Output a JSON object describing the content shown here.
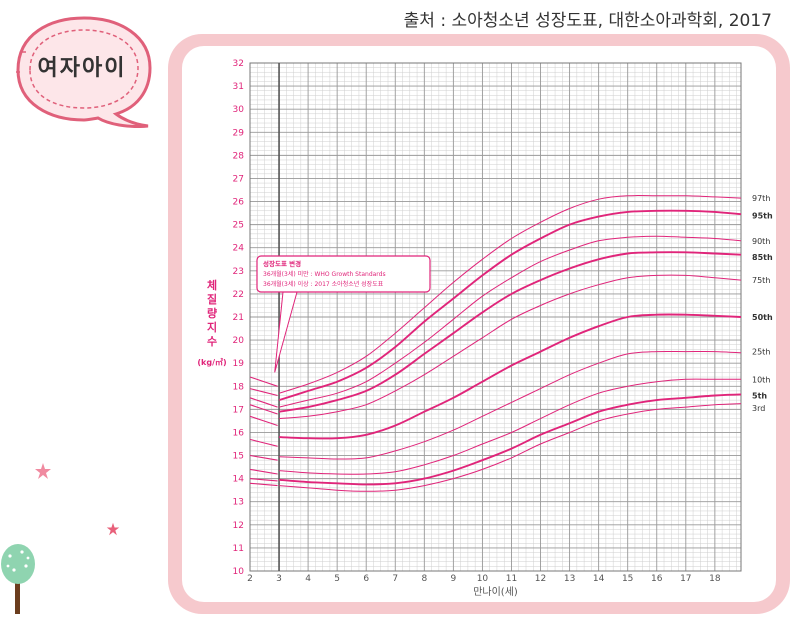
{
  "source": "출처 : 소아청소년 성장도표, 대한소아과학회, 2017",
  "badge": "여자아이",
  "chart_data": {
    "type": "line",
    "title": "",
    "xlabel": "만나이(세)",
    "ylabel": "체질량지수",
    "ylabel_unit": "(kg/㎡)",
    "xlim": [
      2,
      18.9
    ],
    "ylim": [
      10,
      32
    ],
    "x_ticks": [
      2,
      3,
      4,
      5,
      6,
      7,
      8,
      9,
      10,
      11,
      12,
      13,
      14,
      15,
      16,
      17,
      18
    ],
    "y_ticks": [
      10,
      11,
      12,
      13,
      14,
      15,
      16,
      17,
      18,
      19,
      20,
      21,
      22,
      23,
      24,
      25,
      26,
      27,
      28,
      29,
      30,
      31,
      32
    ],
    "grid": true,
    "annotation": {
      "title": "성장도표 변경",
      "line1": "36개월(3세) 미만 : WHO Growth Standards",
      "line2": "36개월(3세) 이상 : 2017 소아청소년 성장도표"
    },
    "who_series": [
      {
        "name": "97th",
        "x": [
          2,
          2.95
        ],
        "y": [
          18.4,
          18.0
        ]
      },
      {
        "name": "95th",
        "x": [
          2,
          2.95
        ],
        "y": [
          17.9,
          17.6
        ]
      },
      {
        "name": "90th",
        "x": [
          2,
          2.95
        ],
        "y": [
          17.5,
          17.1
        ]
      },
      {
        "name": "85th",
        "x": [
          2,
          2.95
        ],
        "y": [
          17.2,
          16.8
        ]
      },
      {
        "name": "75th",
        "x": [
          2,
          2.95
        ],
        "y": [
          16.7,
          16.3
        ]
      },
      {
        "name": "50th",
        "x": [
          2,
          2.95
        ],
        "y": [
          15.7,
          15.4
        ]
      },
      {
        "name": "25th",
        "x": [
          2,
          2.95
        ],
        "y": [
          15.0,
          14.8
        ]
      },
      {
        "name": "10th",
        "x": [
          2,
          2.95
        ],
        "y": [
          14.4,
          14.2
        ]
      },
      {
        "name": "5th",
        "x": [
          2,
          2.95
        ],
        "y": [
          14.0,
          13.9
        ]
      },
      {
        "name": "3rd",
        "x": [
          2,
          2.95
        ],
        "y": [
          13.8,
          13.7
        ]
      }
    ],
    "series": [
      {
        "name": "97th",
        "bold": false,
        "x": [
          3,
          4,
          5,
          6,
          7,
          8,
          9,
          10,
          11,
          12,
          13,
          14,
          15,
          16,
          17,
          18,
          18.9
        ],
        "y": [
          17.7,
          18.1,
          18.6,
          19.3,
          20.3,
          21.4,
          22.5,
          23.5,
          24.4,
          25.1,
          25.7,
          26.1,
          26.25,
          26.25,
          26.25,
          26.2,
          26.15
        ]
      },
      {
        "name": "95th",
        "bold": true,
        "x": [
          3,
          4,
          5,
          6,
          7,
          8,
          9,
          10,
          11,
          12,
          13,
          14,
          15,
          16,
          17,
          18,
          18.9
        ],
        "y": [
          17.4,
          17.8,
          18.2,
          18.8,
          19.7,
          20.8,
          21.8,
          22.8,
          23.7,
          24.4,
          25.0,
          25.35,
          25.55,
          25.6,
          25.6,
          25.55,
          25.45
        ]
      },
      {
        "name": "90th",
        "bold": false,
        "x": [
          3,
          4,
          5,
          6,
          7,
          8,
          9,
          10,
          11,
          12,
          13,
          14,
          15,
          16,
          17,
          18,
          18.9
        ],
        "y": [
          17.1,
          17.4,
          17.7,
          18.2,
          19.0,
          19.9,
          20.9,
          21.9,
          22.7,
          23.4,
          23.9,
          24.3,
          24.45,
          24.5,
          24.45,
          24.4,
          24.3
        ]
      },
      {
        "name": "85th",
        "bold": true,
        "x": [
          3,
          4,
          5,
          6,
          7,
          8,
          9,
          10,
          11,
          12,
          13,
          14,
          15,
          16,
          17,
          18,
          18.9
        ],
        "y": [
          16.9,
          17.1,
          17.4,
          17.8,
          18.5,
          19.4,
          20.3,
          21.2,
          22.0,
          22.6,
          23.1,
          23.5,
          23.75,
          23.8,
          23.8,
          23.75,
          23.7
        ]
      },
      {
        "name": "75th",
        "bold": false,
        "x": [
          3,
          4,
          5,
          6,
          7,
          8,
          9,
          10,
          11,
          12,
          13,
          14,
          15,
          16,
          17,
          18,
          18.9
        ],
        "y": [
          16.6,
          16.7,
          16.9,
          17.2,
          17.8,
          18.5,
          19.3,
          20.1,
          20.9,
          21.5,
          22.0,
          22.4,
          22.7,
          22.8,
          22.8,
          22.7,
          22.6
        ]
      },
      {
        "name": "50th",
        "bold": true,
        "x": [
          3,
          4,
          5,
          6,
          7,
          8,
          9,
          10,
          11,
          12,
          13,
          14,
          15,
          16,
          17,
          18,
          18.9
        ],
        "y": [
          15.8,
          15.75,
          15.75,
          15.9,
          16.3,
          16.9,
          17.5,
          18.2,
          18.9,
          19.5,
          20.1,
          20.6,
          21.0,
          21.1,
          21.1,
          21.05,
          21.0
        ]
      },
      {
        "name": "25th",
        "bold": false,
        "x": [
          3,
          4,
          5,
          6,
          7,
          8,
          9,
          10,
          11,
          12,
          13,
          14,
          15,
          16,
          17,
          18,
          18.9
        ],
        "y": [
          14.95,
          14.9,
          14.85,
          14.9,
          15.2,
          15.6,
          16.1,
          16.7,
          17.3,
          17.9,
          18.5,
          19.0,
          19.4,
          19.5,
          19.5,
          19.5,
          19.45
        ]
      },
      {
        "name": "10th",
        "bold": false,
        "x": [
          3,
          4,
          5,
          6,
          7,
          8,
          9,
          10,
          11,
          12,
          13,
          14,
          15,
          16,
          17,
          18,
          18.9
        ],
        "y": [
          14.35,
          14.25,
          14.2,
          14.2,
          14.3,
          14.6,
          15.0,
          15.5,
          16.0,
          16.6,
          17.2,
          17.7,
          18.0,
          18.2,
          18.3,
          18.3,
          18.3
        ]
      },
      {
        "name": "5th",
        "bold": true,
        "x": [
          3,
          4,
          5,
          6,
          7,
          8,
          9,
          10,
          11,
          12,
          13,
          14,
          15,
          16,
          17,
          18,
          18.9
        ],
        "y": [
          13.95,
          13.85,
          13.8,
          13.75,
          13.8,
          14.0,
          14.35,
          14.8,
          15.3,
          15.9,
          16.4,
          16.9,
          17.2,
          17.4,
          17.5,
          17.6,
          17.65
        ]
      },
      {
        "name": "3rd",
        "bold": false,
        "x": [
          3,
          4,
          5,
          6,
          7,
          8,
          9,
          10,
          11,
          12,
          13,
          14,
          15,
          16,
          17,
          18,
          18.9
        ],
        "y": [
          13.7,
          13.6,
          13.5,
          13.45,
          13.5,
          13.7,
          14.0,
          14.4,
          14.9,
          15.5,
          16.0,
          16.5,
          16.8,
          17.0,
          17.1,
          17.2,
          17.25
        ]
      }
    ],
    "percentile_labels": [
      {
        "text": "97th",
        "y": 26.15
      },
      {
        "text": "95th",
        "y": 25.4
      },
      {
        "text": "90th",
        "y": 24.3
      },
      {
        "text": "85th",
        "y": 23.6
      },
      {
        "text": "75th",
        "y": 22.6
      },
      {
        "text": "50th",
        "y": 21.0
      },
      {
        "text": "25th",
        "y": 19.5
      },
      {
        "text": "10th",
        "y": 18.3
      },
      {
        "text": "5th",
        "y": 17.6
      },
      {
        "text": "3rd",
        "y": 17.05
      }
    ],
    "colors": {
      "curve": "#e0257a",
      "grid": "#9a9a9a",
      "grid_minor": "#cfcfcf",
      "axis_text": "#e0257a",
      "frame": "#f6c9cd"
    }
  }
}
